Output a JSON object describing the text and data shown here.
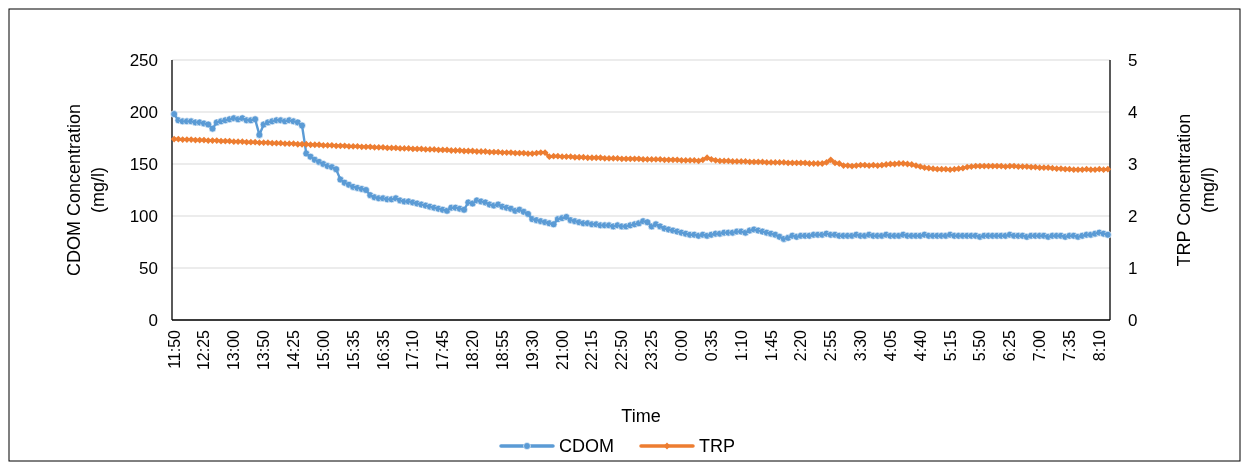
{
  "chart_data": {
    "type": "line",
    "xlabel": "Time",
    "ylabel": "CDOM Concentration (mg/l)",
    "y2label": "TRP Concentration (mg/l)",
    "categories": [
      "11:50",
      null,
      null,
      null,
      null,
      null,
      null,
      "12:25",
      null,
      null,
      null,
      null,
      null,
      null,
      "13:00",
      null,
      null,
      null,
      null,
      null,
      null,
      "13:50",
      null,
      null,
      null,
      null,
      null,
      null,
      "14:25",
      null,
      null,
      null,
      null,
      null,
      null,
      "15:00",
      null,
      null,
      null,
      null,
      null,
      null,
      "15:35",
      null,
      null,
      null,
      null,
      null,
      null,
      "16:35",
      null,
      null,
      null,
      null,
      null,
      null,
      "17:10",
      null,
      null,
      null,
      null,
      null,
      null,
      "17:45",
      null,
      null,
      null,
      null,
      null,
      null,
      "18:20",
      null,
      null,
      null,
      null,
      null,
      null,
      "18:55",
      null,
      null,
      null,
      null,
      null,
      null,
      "19:30",
      null,
      null,
      null,
      null,
      null,
      null,
      "21:00",
      null,
      null,
      null,
      null,
      null,
      null,
      "22:15",
      null,
      null,
      null,
      null,
      null,
      null,
      "22:50",
      null,
      null,
      null,
      null,
      null,
      null,
      "23:25",
      null,
      null,
      null,
      null,
      null,
      null,
      "0:00",
      null,
      null,
      null,
      null,
      null,
      null,
      "0:35",
      null,
      null,
      null,
      null,
      null,
      null,
      "1:10",
      null,
      null,
      null,
      null,
      null,
      null,
      "1:45",
      null,
      null,
      null,
      null,
      null,
      null,
      "2:20",
      null,
      null,
      null,
      null,
      null,
      null,
      "2:55",
      null,
      null,
      null,
      null,
      null,
      null,
      "3:30",
      null,
      null,
      null,
      null,
      null,
      null,
      "4:05",
      null,
      null,
      null,
      null,
      null,
      null,
      "4:40",
      null,
      null,
      null,
      null,
      null,
      null,
      "5:15",
      null,
      null,
      null,
      null,
      null,
      null,
      "5:50",
      null,
      null,
      null,
      null,
      null,
      null,
      "6:25",
      null,
      null,
      null,
      null,
      null,
      null,
      "7:00",
      null,
      null,
      null,
      null,
      null,
      null,
      "7:35",
      null,
      null,
      null,
      null,
      null,
      null,
      "8:10",
      null,
      null
    ],
    "series": [
      {
        "name": "CDOM",
        "color": "#5b9bd5",
        "marker": "circle",
        "values": [
          198,
          192,
          191,
          191,
          191,
          190,
          190,
          189,
          188,
          184,
          190,
          191,
          192,
          193,
          194,
          193,
          194,
          192,
          192,
          193,
          178,
          188,
          190,
          191,
          192,
          192,
          191,
          192,
          191,
          190,
          187,
          160,
          157,
          154,
          152,
          150,
          148,
          147,
          145,
          135,
          132,
          130,
          128,
          127,
          126,
          125,
          120,
          118,
          117,
          117,
          116,
          116,
          117,
          115,
          114,
          114,
          113,
          112,
          111,
          110,
          109,
          108,
          107,
          106,
          105,
          108,
          108,
          107,
          106,
          113,
          112,
          115,
          114,
          113,
          111,
          110,
          111,
          109,
          108,
          107,
          105,
          106,
          104,
          102,
          97,
          96,
          95,
          94,
          93,
          92,
          97,
          98,
          99,
          96,
          95,
          94,
          93,
          93,
          92,
          92,
          91,
          91,
          91,
          90,
          91,
          90,
          90,
          91,
          92,
          93,
          95,
          94,
          90,
          92,
          90,
          88,
          87,
          86,
          85,
          84,
          83,
          82,
          82,
          81,
          82,
          81,
          82,
          83,
          83,
          84,
          84,
          84,
          85,
          85,
          84,
          86,
          87,
          86,
          85,
          84,
          83,
          82,
          80,
          78,
          79,
          81,
          80,
          81,
          81,
          81,
          82,
          82,
          82,
          83,
          82,
          82,
          81,
          81,
          81,
          81,
          82,
          81,
          81,
          82,
          81,
          81,
          81,
          82,
          81,
          81,
          81,
          82,
          81,
          81,
          81,
          81,
          82,
          81,
          81,
          81,
          81,
          81,
          82,
          81,
          81,
          81,
          81,
          81,
          81,
          80,
          81,
          81,
          81,
          81,
          81,
          81,
          82,
          81,
          81,
          81,
          80,
          81,
          81,
          81,
          81,
          80,
          81,
          81,
          81,
          80,
          81,
          81,
          80,
          81,
          82,
          82,
          83,
          84,
          83,
          82
        ]
      },
      {
        "name": "TRP",
        "color": "#ed7d31",
        "marker": "diamond",
        "axis": "y2",
        "values": [
          3.48,
          3.48,
          3.47,
          3.47,
          3.47,
          3.46,
          3.46,
          3.46,
          3.45,
          3.45,
          3.45,
          3.44,
          3.44,
          3.44,
          3.43,
          3.43,
          3.43,
          3.42,
          3.42,
          3.42,
          3.41,
          3.41,
          3.41,
          3.4,
          3.4,
          3.4,
          3.39,
          3.39,
          3.39,
          3.38,
          3.38,
          3.38,
          3.37,
          3.37,
          3.37,
          3.36,
          3.36,
          3.36,
          3.35,
          3.35,
          3.35,
          3.34,
          3.34,
          3.34,
          3.33,
          3.33,
          3.33,
          3.32,
          3.32,
          3.32,
          3.31,
          3.31,
          3.31,
          3.3,
          3.3,
          3.3,
          3.29,
          3.29,
          3.29,
          3.28,
          3.28,
          3.28,
          3.27,
          3.27,
          3.27,
          3.26,
          3.26,
          3.26,
          3.25,
          3.25,
          3.25,
          3.24,
          3.24,
          3.24,
          3.23,
          3.23,
          3.23,
          3.22,
          3.22,
          3.22,
          3.21,
          3.21,
          3.21,
          3.2,
          3.2,
          3.21,
          3.22,
          3.22,
          3.14,
          3.15,
          3.15,
          3.14,
          3.14,
          3.14,
          3.13,
          3.13,
          3.13,
          3.12,
          3.12,
          3.12,
          3.12,
          3.11,
          3.11,
          3.11,
          3.11,
          3.1,
          3.1,
          3.1,
          3.1,
          3.1,
          3.09,
          3.09,
          3.09,
          3.09,
          3.09,
          3.08,
          3.08,
          3.08,
          3.08,
          3.07,
          3.07,
          3.07,
          3.07,
          3.06,
          3.08,
          3.12,
          3.09,
          3.07,
          3.06,
          3.06,
          3.06,
          3.05,
          3.05,
          3.05,
          3.05,
          3.04,
          3.04,
          3.04,
          3.04,
          3.03,
          3.03,
          3.03,
          3.03,
          3.03,
          3.02,
          3.02,
          3.02,
          3.02,
          3.02,
          3.01,
          3.01,
          3.01,
          3.01,
          3.03,
          3.08,
          3.02,
          3.01,
          2.97,
          2.97,
          2.96,
          2.97,
          2.98,
          2.98,
          2.97,
          2.98,
          2.97,
          2.98,
          2.99,
          3.0,
          3.0,
          3.01,
          3.01,
          3.0,
          2.99,
          2.97,
          2.95,
          2.93,
          2.92,
          2.91,
          2.9,
          2.9,
          2.9,
          2.89,
          2.9,
          2.91,
          2.92,
          2.94,
          2.95,
          2.96,
          2.96,
          2.96,
          2.96,
          2.96,
          2.96,
          2.96,
          2.95,
          2.96,
          2.96,
          2.95,
          2.95,
          2.95,
          2.94,
          2.94,
          2.93,
          2.93,
          2.93,
          2.92,
          2.91,
          2.91,
          2.9,
          2.9,
          2.89,
          2.89,
          2.89,
          2.9,
          2.89,
          2.89,
          2.9,
          2.89,
          2.9
        ]
      }
    ],
    "ylim": [
      0,
      250
    ],
    "yticks": [
      0,
      50,
      100,
      150,
      200,
      250
    ],
    "y2lim": [
      0,
      5
    ],
    "y2ticks": [
      0,
      1,
      2,
      3,
      4,
      5
    ],
    "grid": "y",
    "legend": "bottom",
    "line_style": "solid"
  }
}
